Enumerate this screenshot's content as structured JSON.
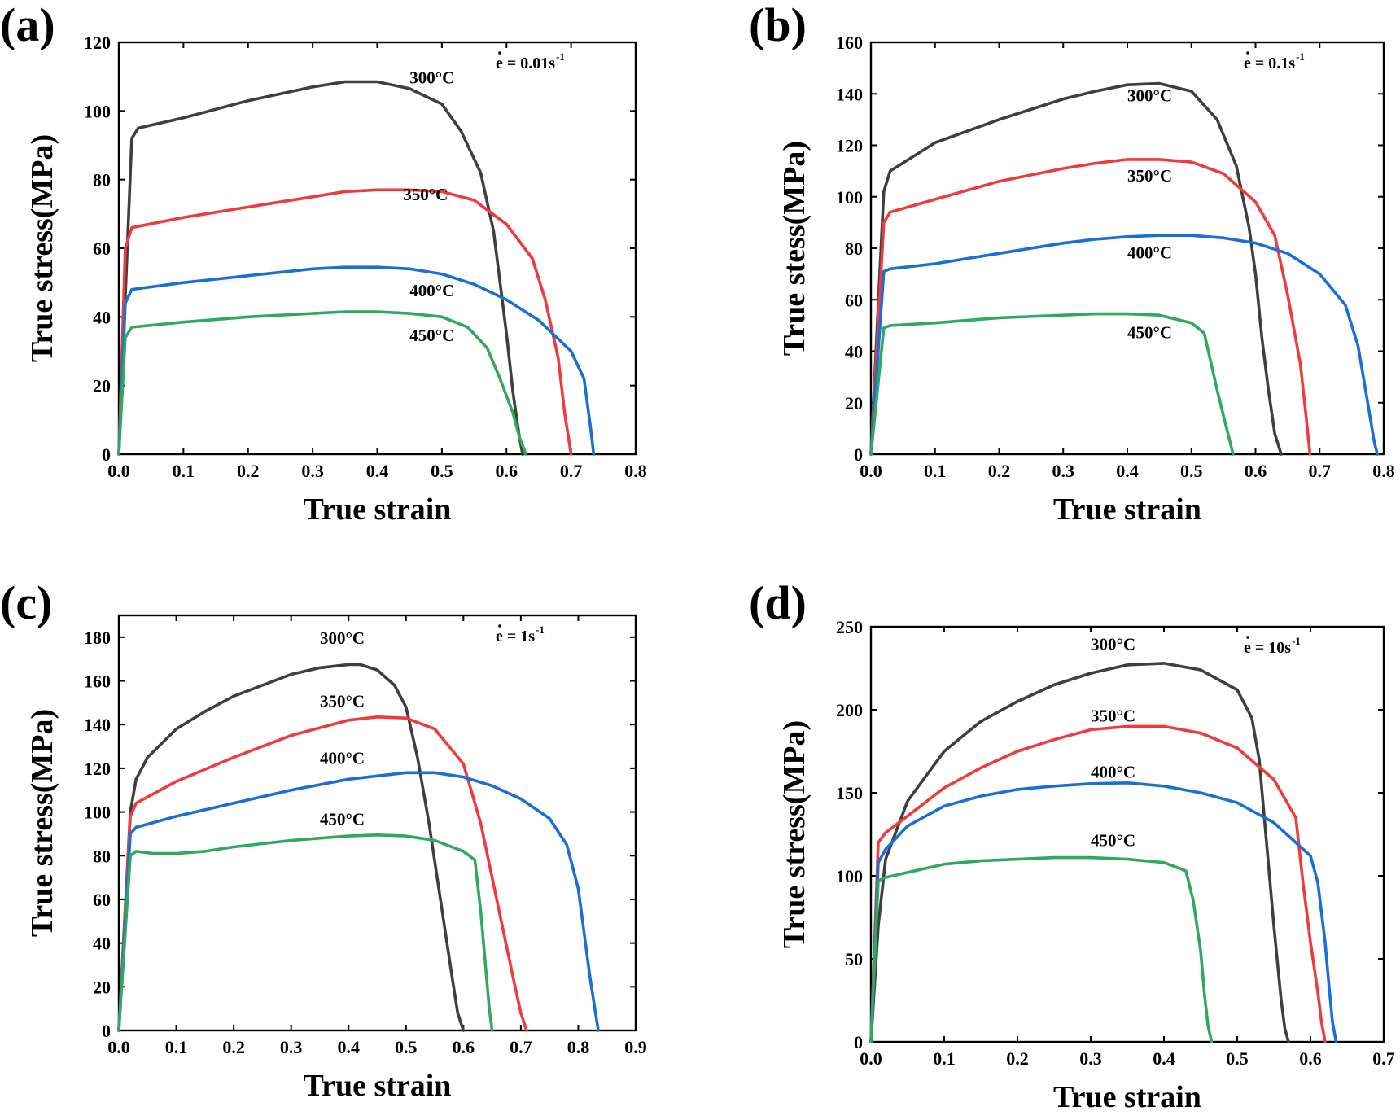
{
  "colors": {
    "T300": "#3f3f3f",
    "T350": "#ee3b3b",
    "T400": "#1a6fd6",
    "T450": "#2fa860"
  },
  "chart_data": [
    {
      "type": "line",
      "panel": "(a)",
      "title": "",
      "xlabel": "True strain",
      "ylabel": "True stress(MPa)",
      "xlim": [
        0,
        0.8
      ],
      "ylim": [
        0,
        120
      ],
      "xticks": [
        0.0,
        0.1,
        0.2,
        0.3,
        0.4,
        0.5,
        0.6,
        0.7,
        0.8
      ],
      "yticks": [
        0,
        20,
        40,
        60,
        80,
        100,
        120
      ],
      "xtick_labels": [
        "0.0",
        "0.1",
        "0.2",
        "0.3",
        "0.4",
        "0.5",
        "0.6",
        "0.7",
        "0.8"
      ],
      "ytick_labels": [
        "0",
        "20",
        "40",
        "60",
        "80",
        "100",
        "120"
      ],
      "rate_text": "e = 0.01s",
      "rate_sup": "-1",
      "series": [
        {
          "name": "300°C",
          "color_key": "T300",
          "label_at": [
            0.45,
            108
          ],
          "x": [
            0,
            0.02,
            0.03,
            0.1,
            0.2,
            0.3,
            0.35,
            0.4,
            0.45,
            0.5,
            0.53,
            0.56,
            0.58,
            0.6,
            0.61,
            0.62,
            0.625
          ],
          "y": [
            0,
            92,
            95,
            98,
            103,
            107,
            108.5,
            108.5,
            106.5,
            102,
            94,
            82,
            65,
            35,
            18,
            5,
            0
          ]
        },
        {
          "name": "350°C",
          "color_key": "T350",
          "label_at": [
            0.44,
            74
          ],
          "x": [
            0,
            0.01,
            0.02,
            0.1,
            0.2,
            0.3,
            0.35,
            0.4,
            0.45,
            0.5,
            0.55,
            0.6,
            0.64,
            0.66,
            0.68,
            0.69,
            0.7
          ],
          "y": [
            0,
            60,
            66,
            69,
            72,
            75,
            76.5,
            77,
            77,
            76.5,
            74,
            67,
            57,
            45,
            28,
            12,
            0
          ]
        },
        {
          "name": "400°C",
          "color_key": "T400",
          "label_at": [
            0.45,
            46
          ],
          "x": [
            0,
            0.01,
            0.02,
            0.1,
            0.2,
            0.3,
            0.35,
            0.4,
            0.45,
            0.5,
            0.55,
            0.6,
            0.65,
            0.7,
            0.72,
            0.73,
            0.735
          ],
          "y": [
            0,
            44,
            48,
            50,
            52,
            54,
            54.5,
            54.5,
            54,
            52.5,
            49.5,
            45,
            39,
            30,
            22,
            8,
            0
          ]
        },
        {
          "name": "450°C",
          "color_key": "T450",
          "label_at": [
            0.45,
            33
          ],
          "x": [
            0,
            0.01,
            0.02,
            0.1,
            0.2,
            0.3,
            0.35,
            0.4,
            0.45,
            0.5,
            0.54,
            0.57,
            0.59,
            0.61,
            0.62,
            0.63
          ],
          "y": [
            0,
            34,
            37,
            38.5,
            40,
            41,
            41.5,
            41.5,
            41,
            40,
            37,
            31,
            22,
            12,
            5,
            0
          ]
        }
      ]
    },
    {
      "type": "line",
      "panel": "(b)",
      "title": "",
      "xlabel": "True strain",
      "ylabel": "True stess(MPa)",
      "xlim": [
        0,
        0.8
      ],
      "ylim": [
        0,
        160
      ],
      "xticks": [
        0.0,
        0.1,
        0.2,
        0.3,
        0.4,
        0.5,
        0.6,
        0.7,
        0.8
      ],
      "yticks": [
        0,
        20,
        40,
        60,
        80,
        100,
        120,
        140,
        160
      ],
      "xtick_labels": [
        "0.0",
        "0.1",
        "0.2",
        "0.3",
        "0.4",
        "0.5",
        "0.6",
        "0.7",
        "0.8"
      ],
      "ytick_labels": [
        "0",
        "20",
        "40",
        "60",
        "80",
        "100",
        "120",
        "140",
        "160"
      ],
      "rate_text": "e = 0.1s",
      "rate_sup": "-1",
      "series": [
        {
          "name": "300°C",
          "color_key": "T300",
          "label_at": [
            0.4,
            137
          ],
          "x": [
            0,
            0.02,
            0.03,
            0.1,
            0.2,
            0.3,
            0.35,
            0.4,
            0.45,
            0.5,
            0.54,
            0.57,
            0.59,
            0.6,
            0.61,
            0.62,
            0.63,
            0.64
          ],
          "y": [
            0,
            102,
            110,
            121,
            130,
            138,
            141,
            143.5,
            144,
            141,
            130,
            112,
            88,
            70,
            45,
            25,
            8,
            0
          ]
        },
        {
          "name": "350°C",
          "color_key": "T350",
          "label_at": [
            0.4,
            106
          ],
          "x": [
            0,
            0.02,
            0.03,
            0.1,
            0.2,
            0.3,
            0.35,
            0.4,
            0.45,
            0.5,
            0.55,
            0.6,
            0.63,
            0.65,
            0.67,
            0.68,
            0.685
          ],
          "y": [
            0,
            90,
            94,
            99,
            106,
            111,
            113,
            114.5,
            114.5,
            113.5,
            109,
            98,
            85,
            62,
            35,
            12,
            0
          ]
        },
        {
          "name": "400°C",
          "color_key": "T400",
          "label_at": [
            0.4,
            76
          ],
          "x": [
            0,
            0.02,
            0.03,
            0.1,
            0.2,
            0.3,
            0.35,
            0.4,
            0.45,
            0.5,
            0.55,
            0.6,
            0.65,
            0.7,
            0.74,
            0.76,
            0.775,
            0.785,
            0.79
          ],
          "y": [
            0,
            71,
            72,
            74,
            78,
            82,
            83.5,
            84.5,
            85,
            85,
            84,
            82,
            78,
            70,
            58,
            42,
            20,
            5,
            0
          ]
        },
        {
          "name": "450°C",
          "color_key": "T450",
          "label_at": [
            0.4,
            45
          ],
          "x": [
            0,
            0.02,
            0.03,
            0.1,
            0.2,
            0.3,
            0.35,
            0.4,
            0.45,
            0.5,
            0.52,
            0.53,
            0.54,
            0.55,
            0.56,
            0.565
          ],
          "y": [
            0,
            49,
            50,
            51,
            53,
            54,
            54.5,
            54.5,
            54,
            51,
            47,
            36,
            25,
            15,
            5,
            0
          ]
        }
      ]
    },
    {
      "type": "line",
      "panel": "(c)",
      "title": "",
      "xlabel": "True strain",
      "ylabel": "True stress(MPa)",
      "xlim": [
        0,
        0.9
      ],
      "ylim": [
        0,
        190
      ],
      "xticks": [
        0.0,
        0.1,
        0.2,
        0.3,
        0.4,
        0.5,
        0.6,
        0.7,
        0.8,
        0.9
      ],
      "yticks": [
        0,
        20,
        40,
        60,
        80,
        100,
        120,
        140,
        160,
        180
      ],
      "xtick_labels": [
        "0.0",
        "0.1",
        "0.2",
        "0.3",
        "0.4",
        "0.5",
        "0.6",
        "0.7",
        "0.8",
        "0.9"
      ],
      "ytick_labels": [
        "0",
        "20",
        "40",
        "60",
        "80",
        "100",
        "120",
        "140",
        "160",
        "180"
      ],
      "rate_text": "e = 1s",
      "rate_sup": "-1",
      "series": [
        {
          "name": "300°C",
          "color_key": "T300",
          "label_at": [
            0.35,
            177
          ],
          "x": [
            0,
            0.02,
            0.03,
            0.05,
            0.1,
            0.15,
            0.2,
            0.3,
            0.35,
            0.4,
            0.42,
            0.45,
            0.48,
            0.5,
            0.52,
            0.54,
            0.56,
            0.58,
            0.59,
            0.6
          ],
          "y": [
            0,
            100,
            115,
            125,
            138,
            146,
            153,
            163,
            166,
            167.5,
            167.5,
            165,
            158,
            148,
            125,
            95,
            60,
            25,
            8,
            0
          ]
        },
        {
          "name": "350°C",
          "color_key": "T350",
          "label_at": [
            0.35,
            148
          ],
          "x": [
            0,
            0.02,
            0.03,
            0.1,
            0.2,
            0.3,
            0.4,
            0.45,
            0.5,
            0.55,
            0.6,
            0.63,
            0.65,
            0.67,
            0.69,
            0.7,
            0.71
          ],
          "y": [
            0,
            98,
            104,
            114,
            125,
            135,
            142,
            143.5,
            143,
            138,
            122,
            95,
            70,
            45,
            20,
            8,
            0
          ]
        },
        {
          "name": "400°C",
          "color_key": "T400",
          "label_at": [
            0.35,
            122
          ],
          "x": [
            0,
            0.02,
            0.03,
            0.1,
            0.2,
            0.3,
            0.4,
            0.5,
            0.55,
            0.6,
            0.65,
            0.7,
            0.75,
            0.78,
            0.8,
            0.81,
            0.82,
            0.83,
            0.835
          ],
          "y": [
            0,
            90,
            93,
            98,
            104,
            110,
            115,
            118,
            118,
            116,
            112,
            106,
            97,
            85,
            65,
            45,
            25,
            8,
            0
          ]
        },
        {
          "name": "450°C",
          "color_key": "T450",
          "label_at": [
            0.35,
            94
          ],
          "x": [
            0,
            0.02,
            0.03,
            0.06,
            0.1,
            0.15,
            0.2,
            0.3,
            0.4,
            0.45,
            0.5,
            0.55,
            0.6,
            0.62,
            0.63,
            0.64,
            0.645,
            0.65
          ],
          "y": [
            0,
            80,
            82,
            81,
            81,
            82,
            84,
            87,
            89,
            89.5,
            89,
            87,
            82,
            78,
            55,
            25,
            10,
            0
          ]
        }
      ]
    },
    {
      "type": "line",
      "panel": "(d)",
      "title": "",
      "xlabel": "True strain",
      "ylabel": "True stress(MPa)",
      "xlim": [
        0,
        0.7
      ],
      "ylim": [
        0,
        250
      ],
      "xticks": [
        0.0,
        0.1,
        0.2,
        0.3,
        0.4,
        0.5,
        0.6,
        0.7
      ],
      "yticks": [
        0,
        50,
        100,
        150,
        200,
        250
      ],
      "xtick_labels": [
        "0.0",
        "0.1",
        "0.2",
        "0.3",
        "0.4",
        "0.5",
        "0.6",
        "0.7"
      ],
      "ytick_labels": [
        "0",
        "50",
        "100",
        "150",
        "200",
        "250"
      ],
      "rate_text": "e = 10s",
      "rate_sup": "-1",
      "series": [
        {
          "name": "300°C",
          "color_key": "T300",
          "label_at": [
            0.3,
            236
          ],
          "x": [
            0,
            0.01,
            0.02,
            0.05,
            0.1,
            0.15,
            0.2,
            0.25,
            0.3,
            0.35,
            0.4,
            0.45,
            0.5,
            0.52,
            0.53,
            0.54,
            0.55,
            0.56,
            0.565,
            0.57
          ],
          "y": [
            0,
            70,
            110,
            145,
            175,
            193,
            205,
            215,
            222,
            227,
            228,
            224,
            212,
            195,
            170,
            120,
            70,
            25,
            8,
            0
          ]
        },
        {
          "name": "350°C",
          "color_key": "T350",
          "label_at": [
            0.3,
            193
          ],
          "x": [
            0,
            0.01,
            0.02,
            0.05,
            0.1,
            0.15,
            0.2,
            0.25,
            0.3,
            0.35,
            0.4,
            0.45,
            0.5,
            0.55,
            0.58,
            0.59,
            0.6,
            0.61,
            0.615,
            0.62
          ],
          "y": [
            0,
            120,
            126,
            136,
            153,
            165,
            175,
            182,
            188,
            190,
            190,
            186,
            177,
            158,
            135,
            95,
            60,
            30,
            12,
            0
          ]
        },
        {
          "name": "400°C",
          "color_key": "T400",
          "label_at": [
            0.3,
            159
          ],
          "x": [
            0,
            0.01,
            0.02,
            0.05,
            0.1,
            0.15,
            0.2,
            0.25,
            0.3,
            0.35,
            0.4,
            0.45,
            0.5,
            0.55,
            0.6,
            0.61,
            0.62,
            0.625,
            0.63,
            0.635
          ],
          "y": [
            0,
            108,
            116,
            130,
            142,
            148,
            152,
            154,
            155.5,
            156,
            154,
            150,
            144,
            132,
            112,
            96,
            60,
            35,
            12,
            0
          ]
        },
        {
          "name": "450°C",
          "color_key": "T450",
          "label_at": [
            0.3,
            118
          ],
          "x": [
            0,
            0.01,
            0.02,
            0.05,
            0.1,
            0.15,
            0.2,
            0.25,
            0.3,
            0.35,
            0.4,
            0.43,
            0.44,
            0.45,
            0.455,
            0.46,
            0.465
          ],
          "y": [
            0,
            97,
            99,
            102,
            107,
            109,
            110,
            111,
            111,
            110,
            108,
            103,
            85,
            55,
            30,
            10,
            0
          ]
        }
      ]
    }
  ]
}
